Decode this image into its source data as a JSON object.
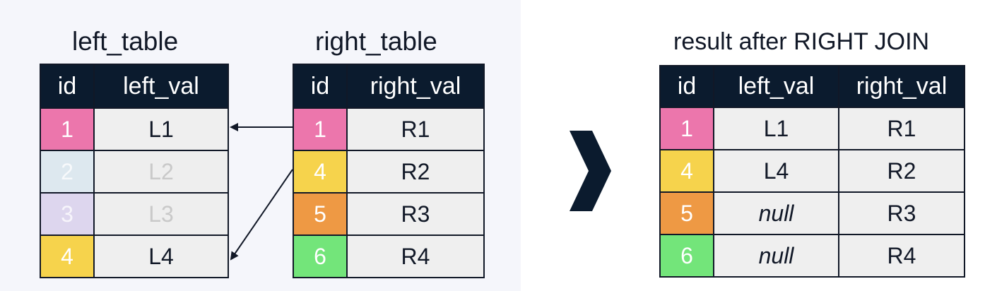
{
  "colors": {
    "header": "#0b1b2e",
    "pink": "#ec76ac",
    "lightblue": "#dde8ef",
    "lavender": "#ddd6ee",
    "yellow": "#f6d34c",
    "orange": "#ee9944",
    "green": "#73e57a",
    "cell": "#efefef",
    "line": "#111827"
  },
  "left_table": {
    "caption": "left_table",
    "headers": [
      "id",
      "left_val"
    ],
    "rows": [
      {
        "id": "1",
        "val": "L1",
        "color": "pink",
        "faded": false
      },
      {
        "id": "2",
        "val": "L2",
        "color": "lightblue",
        "faded": true
      },
      {
        "id": "3",
        "val": "L3",
        "color": "lavender",
        "faded": true
      },
      {
        "id": "4",
        "val": "L4",
        "color": "yellow",
        "faded": false
      }
    ]
  },
  "right_table": {
    "caption": "right_table",
    "headers": [
      "id",
      "right_val"
    ],
    "rows": [
      {
        "id": "1",
        "val": "R1",
        "color": "pink"
      },
      {
        "id": "4",
        "val": "R2",
        "color": "yellow"
      },
      {
        "id": "5",
        "val": "R3",
        "color": "orange"
      },
      {
        "id": "6",
        "val": "R4",
        "color": "green"
      }
    ]
  },
  "result_table": {
    "caption": "result after RIGHT JOIN",
    "headers": [
      "id",
      "left_val",
      "right_val"
    ],
    "rows": [
      {
        "id": "1",
        "left": "L1",
        "right": "R1",
        "color": "pink"
      },
      {
        "id": "4",
        "left": "L4",
        "right": "R2",
        "color": "yellow"
      },
      {
        "id": "5",
        "left": "null",
        "right": "R3",
        "color": "orange"
      },
      {
        "id": "6",
        "left": "null",
        "right": "R4",
        "color": "green"
      }
    ]
  },
  "arrow_icon": "chevron-right-icon"
}
